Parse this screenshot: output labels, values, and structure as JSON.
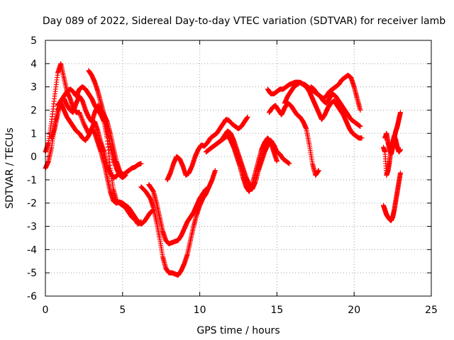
{
  "chart_data": {
    "type": "scatter",
    "title": "Day 089 of 2022, Sidereal Day-to-day VTEC variation (SDTVAR) for receiver lamb",
    "xlabel": "GPS time / hours",
    "ylabel": "SDTVAR / TECUs",
    "xlim": [
      0,
      25
    ],
    "ylim": [
      -6,
      5
    ],
    "xticks": [
      0,
      5,
      10,
      15,
      20,
      25
    ],
    "yticks": [
      -6,
      -5,
      -4,
      -3,
      -2,
      -1,
      0,
      1,
      2,
      3,
      4,
      5
    ],
    "grid": true,
    "legend": "none",
    "marker": "+",
    "color": "#ff0000",
    "series": [
      {
        "x": [
          0.0,
          0.2,
          0.4,
          0.6,
          0.8,
          1.0,
          1.2,
          1.4,
          1.6,
          1.8,
          2.0,
          2.2,
          2.5,
          2.8,
          3.0,
          3.2,
          3.4,
          3.6,
          3.8,
          4.0,
          4.2,
          4.4,
          4.6,
          4.8,
          5.0,
          5.2,
          5.4,
          5.6,
          5.8,
          6.0,
          6.2
        ],
        "y": [
          0.2,
          0.6,
          1.5,
          2.6,
          3.6,
          4.0,
          3.4,
          2.8,
          2.5,
          2.1,
          1.9,
          1.9,
          1.4,
          1.0,
          1.2,
          1.5,
          1.1,
          0.6,
          0.2,
          -0.4,
          -0.7,
          -0.9,
          -0.85,
          -0.7,
          -0.8,
          -0.7,
          -0.6,
          -0.5,
          -0.45,
          -0.35,
          -0.3
        ]
      },
      {
        "x": [
          0.0,
          0.2,
          0.4,
          0.6,
          0.8,
          1.0,
          1.2,
          1.4,
          1.6,
          1.8,
          2.0,
          2.2,
          2.4,
          2.6,
          2.8,
          3.0,
          3.2,
          3.4,
          3.6,
          3.8,
          4.0,
          4.2,
          4.4,
          4.6,
          4.8,
          5.0,
          5.2,
          5.4,
          5.6,
          5.8,
          6.0,
          6.2,
          6.4,
          6.6,
          6.8,
          7.0
        ],
        "y": [
          -0.5,
          -0.2,
          0.4,
          1.3,
          2.0,
          2.3,
          2.0,
          1.7,
          1.5,
          1.3,
          1.1,
          1.0,
          0.8,
          0.7,
          0.9,
          1.2,
          1.0,
          0.6,
          0.2,
          -0.3,
          -0.9,
          -1.5,
          -1.9,
          -2.0,
          -1.95,
          -2.0,
          -2.1,
          -2.2,
          -2.4,
          -2.6,
          -2.8,
          -2.9,
          -2.8,
          -2.6,
          -2.4,
          -2.3
        ]
      },
      {
        "x": [
          0.4,
          0.6,
          0.8,
          1.0,
          1.2,
          1.4,
          1.6,
          1.8,
          2.0,
          2.2,
          2.4,
          2.6,
          2.8,
          3.0,
          3.2,
          3.4,
          3.6,
          3.8,
          4.0,
          4.2,
          4.4,
          4.6,
          4.8,
          5.0,
          5.2,
          5.4
        ],
        "y": [
          0.8,
          1.2,
          1.8,
          2.4,
          2.5,
          2.2,
          2.0,
          1.9,
          2.3,
          2.6,
          2.4,
          2.0,
          1.7,
          1.5,
          1.9,
          2.2,
          2.0,
          1.8,
          1.5,
          1.0,
          0.4,
          -0.2,
          -0.6,
          -0.8,
          -0.7,
          -0.6
        ]
      },
      {
        "x": [
          0.8,
          1.0,
          1.2,
          1.4,
          1.6,
          1.8,
          2.0,
          2.2,
          2.4,
          2.6,
          2.8,
          3.0,
          3.2,
          3.4,
          3.6,
          3.8,
          4.0,
          4.2,
          4.4,
          4.6,
          4.8,
          5.0,
          5.2,
          5.4,
          5.6,
          5.8,
          6.0,
          6.2
        ],
        "y": [
          2.2,
          2.4,
          2.6,
          2.8,
          2.9,
          2.8,
          2.6,
          2.9,
          3.0,
          2.9,
          2.7,
          2.5,
          2.2,
          2.0,
          1.8,
          1.5,
          0.8,
          -0.5,
          -1.4,
          -1.9,
          -2.0,
          -2.1,
          -2.2,
          -2.4,
          -2.6,
          -2.7,
          -2.9,
          -2.8
        ]
      },
      {
        "x": [
          2.8,
          3.0,
          3.2,
          3.4,
          3.6,
          3.8,
          4.0,
          4.2,
          4.4,
          4.6,
          4.8,
          5.0,
          5.2
        ],
        "y": [
          3.7,
          3.5,
          3.2,
          2.8,
          2.3,
          1.8,
          1.2,
          0.5,
          -0.1,
          -0.5,
          -0.8,
          -0.9,
          -0.8
        ]
      },
      {
        "x": [
          6.2,
          6.5,
          6.8,
          7.0,
          7.2,
          7.4,
          7.6,
          7.8,
          8.0,
          8.2,
          8.4,
          8.6,
          8.8,
          9.0,
          9.2,
          9.4,
          9.6,
          9.8,
          10.0,
          10.2,
          10.4,
          10.6,
          10.8,
          11.0
        ],
        "y": [
          -1.3,
          -1.5,
          -1.8,
          -2.2,
          -2.8,
          -3.5,
          -4.3,
          -4.8,
          -5.0,
          -5.0,
          -5.05,
          -5.1,
          -4.9,
          -4.6,
          -4.2,
          -3.6,
          -3.0,
          -2.5,
          -2.1,
          -1.8,
          -1.6,
          -1.3,
          -1.0,
          -0.6
        ]
      },
      {
        "x": [
          6.7,
          7.0,
          7.2,
          7.4,
          7.6,
          7.8,
          8.0,
          8.2,
          8.4,
          8.6,
          8.8,
          9.0,
          9.2,
          9.4,
          9.6,
          9.8,
          10.0,
          10.2,
          10.4
        ],
        "y": [
          -1.2,
          -1.5,
          -2.0,
          -2.6,
          -3.2,
          -3.6,
          -3.75,
          -3.7,
          -3.65,
          -3.6,
          -3.4,
          -3.1,
          -2.8,
          -2.6,
          -2.4,
          -2.1,
          -1.8,
          -1.6,
          -1.4
        ]
      },
      {
        "x": [
          7.9,
          8.1,
          8.3,
          8.5,
          8.7,
          8.9,
          9.1,
          9.3,
          9.5,
          9.7,
          9.9,
          10.1,
          10.3,
          10.5,
          10.7,
          10.9,
          11.1,
          11.3,
          11.5,
          11.7,
          11.9,
          12.1,
          12.3,
          12.5,
          12.7,
          12.9,
          13.1
        ],
        "y": [
          -1.0,
          -0.7,
          -0.3,
          0.0,
          -0.1,
          -0.4,
          -0.8,
          -0.7,
          -0.4,
          0.0,
          0.3,
          0.5,
          0.45,
          0.6,
          0.8,
          0.9,
          1.0,
          1.2,
          1.4,
          1.6,
          1.55,
          1.4,
          1.3,
          1.2,
          1.3,
          1.5,
          1.7
        ]
      },
      {
        "x": [
          10.4,
          10.6,
          10.8,
          11.0,
          11.2,
          11.4,
          11.6,
          11.8,
          12.0,
          12.2,
          12.4,
          12.6,
          12.8,
          13.0,
          13.2,
          13.4,
          13.6,
          13.8,
          14.0,
          14.2,
          14.4,
          14.6,
          14.8,
          15.0
        ],
        "y": [
          0.2,
          0.3,
          0.4,
          0.5,
          0.6,
          0.7,
          0.8,
          0.9,
          0.7,
          0.4,
          0.0,
          -0.4,
          -0.9,
          -1.3,
          -1.5,
          -1.2,
          -0.7,
          -0.2,
          0.3,
          0.6,
          0.8,
          0.6,
          0.2,
          -0.2
        ]
      },
      {
        "x": [
          11.0,
          11.2,
          11.4,
          11.6,
          11.8,
          12.0,
          12.2,
          12.4,
          12.6,
          12.8,
          13.0,
          13.2,
          13.4,
          13.6,
          13.8,
          14.0,
          14.2,
          14.4,
          14.6,
          14.8,
          15.0,
          15.2,
          15.4,
          15.6,
          15.8
        ],
        "y": [
          0.5,
          0.6,
          0.7,
          0.9,
          1.1,
          1.0,
          0.7,
          0.3,
          -0.1,
          -0.5,
          -0.9,
          -1.2,
          -1.4,
          -1.1,
          -0.6,
          -0.2,
          0.2,
          0.5,
          0.7,
          0.5,
          0.2,
          0.1,
          -0.1,
          -0.2,
          -0.3
        ]
      },
      {
        "x": [
          14.4,
          14.6,
          14.8,
          15.0,
          15.2,
          15.4,
          15.6,
          15.8,
          16.0,
          16.2,
          16.4,
          16.6,
          16.8,
          17.0,
          17.2,
          17.4,
          17.6,
          17.8,
          18.0,
          18.2,
          18.4,
          18.6,
          18.8,
          19.0,
          19.2,
          19.4,
          19.6,
          19.8,
          20.0,
          20.2,
          20.4
        ],
        "y": [
          2.9,
          2.7,
          2.7,
          2.8,
          2.9,
          2.9,
          3.0,
          3.1,
          3.15,
          3.2,
          3.2,
          3.15,
          3.1,
          3.0,
          2.9,
          2.8,
          2.7,
          2.6,
          2.5,
          2.6,
          2.8,
          2.9,
          3.0,
          3.1,
          3.3,
          3.4,
          3.5,
          3.4,
          3.0,
          2.5,
          2.0
        ]
      },
      {
        "x": [
          14.5,
          14.7,
          14.9,
          15.1,
          15.3,
          15.5,
          15.7,
          15.9,
          16.1,
          16.3,
          16.5,
          16.7,
          16.9,
          17.1,
          17.3,
          17.5,
          17.7
        ],
        "y": [
          1.9,
          2.1,
          2.2,
          2.0,
          1.8,
          2.1,
          2.3,
          2.2,
          2.0,
          1.8,
          1.7,
          1.5,
          1.2,
          0.5,
          -0.3,
          -0.8,
          -0.6
        ]
      },
      {
        "x": [
          15.5,
          15.7,
          15.9,
          16.1,
          16.3,
          16.5,
          16.7,
          16.9,
          17.1,
          17.3,
          17.5,
          17.7,
          17.9,
          18.1,
          18.3,
          18.5,
          18.7,
          18.9,
          19.1,
          19.3,
          19.5,
          19.7,
          19.9,
          20.1,
          20.3,
          20.5
        ],
        "y": [
          2.3,
          2.6,
          2.8,
          3.0,
          3.1,
          3.2,
          3.1,
          3.0,
          2.8,
          2.5,
          2.2,
          1.9,
          1.6,
          1.8,
          2.1,
          2.3,
          2.4,
          2.2,
          2.0,
          1.8,
          1.5,
          1.2,
          1.0,
          0.9,
          0.8,
          0.8
        ]
      },
      {
        "x": [
          17.2,
          17.4,
          17.6,
          17.8,
          18.0,
          18.2,
          18.4,
          18.6,
          18.8,
          19.0,
          19.2,
          19.4,
          19.6,
          19.8,
          20.0,
          20.2,
          20.4
        ],
        "y": [
          3.0,
          2.9,
          2.7,
          2.6,
          2.4,
          2.3,
          2.5,
          2.7,
          2.6,
          2.4,
          2.2,
          2.0,
          1.8,
          1.6,
          1.5,
          1.4,
          1.3
        ]
      },
      {
        "x": [
          22.0,
          22.1,
          22.2,
          22.3,
          22.4,
          22.5,
          22.6,
          22.7,
          22.8,
          22.9,
          23.0
        ],
        "y": [
          0.8,
          1.0,
          0.6,
          0.3,
          0.1,
          0.4,
          0.8,
          1.1,
          1.3,
          1.6,
          1.9
        ]
      },
      {
        "x": [
          21.9,
          22.0,
          22.1,
          22.2,
          22.3,
          22.4,
          22.5,
          22.6,
          22.7,
          22.8,
          22.9,
          23.0
        ],
        "y": [
          0.4,
          0.2,
          -0.8,
          -0.6,
          -0.2,
          0.3,
          0.6,
          0.9,
          0.7,
          0.4,
          0.2,
          0.3
        ]
      },
      {
        "x": [
          21.9,
          22.0,
          22.1,
          22.2,
          22.3,
          22.4,
          22.5,
          22.6,
          22.7,
          22.8,
          22.9,
          23.0
        ],
        "y": [
          -2.1,
          -2.3,
          -2.5,
          -2.6,
          -2.7,
          -2.75,
          -2.6,
          -2.3,
          -1.9,
          -1.5,
          -1.1,
          -0.7
        ]
      }
    ]
  }
}
